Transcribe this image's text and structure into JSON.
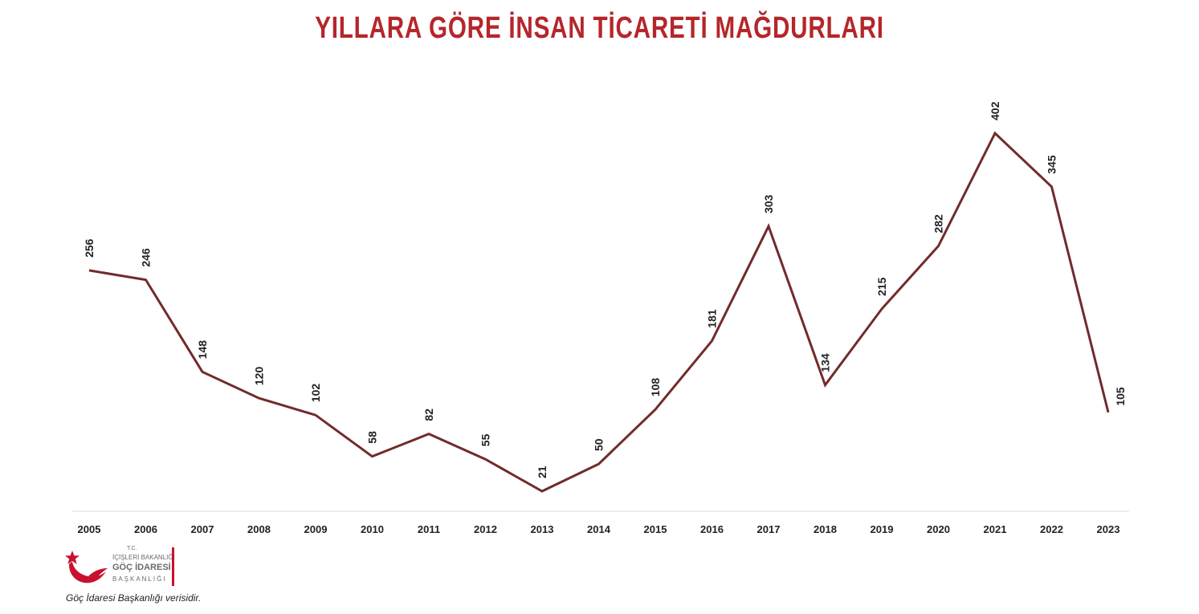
{
  "colors": {
    "title": "#b5262a",
    "line": "#722b2b",
    "axis": "#d9d9d9",
    "logo_red": "#c8102e"
  },
  "logo": {
    "line1": "T.C.",
    "line2": "İÇİŞLERİ BAKANLIĞI",
    "line3": "GÖÇ İDARESİ",
    "line4": "BAŞKANLIĞI",
    "icon": "crescent-star-icon"
  },
  "source_note": "Göç İdaresi Başkanlığı verisidir.",
  "chart_data": {
    "type": "line",
    "title": "YILLARA GÖRE İNSAN TİCARETİ MAĞDURLARI",
    "xlabel": "",
    "ylabel": "",
    "categories": [
      "2005",
      "2006",
      "2007",
      "2008",
      "2009",
      "2010",
      "2011",
      "2012",
      "2013",
      "2014",
      "2015",
      "2016",
      "2017",
      "2018",
      "2019",
      "2020",
      "2021",
      "2022",
      "2023"
    ],
    "series": [
      {
        "values": [
          256,
          246,
          148,
          120,
          102,
          58,
          82,
          55,
          21,
          50,
          108,
          181,
          303,
          134,
          215,
          282,
          402,
          345,
          105
        ]
      }
    ],
    "ylim": [
      0,
      402
    ],
    "grid": false,
    "y_axis_visible": false,
    "data_labels": true,
    "legend": "none"
  }
}
